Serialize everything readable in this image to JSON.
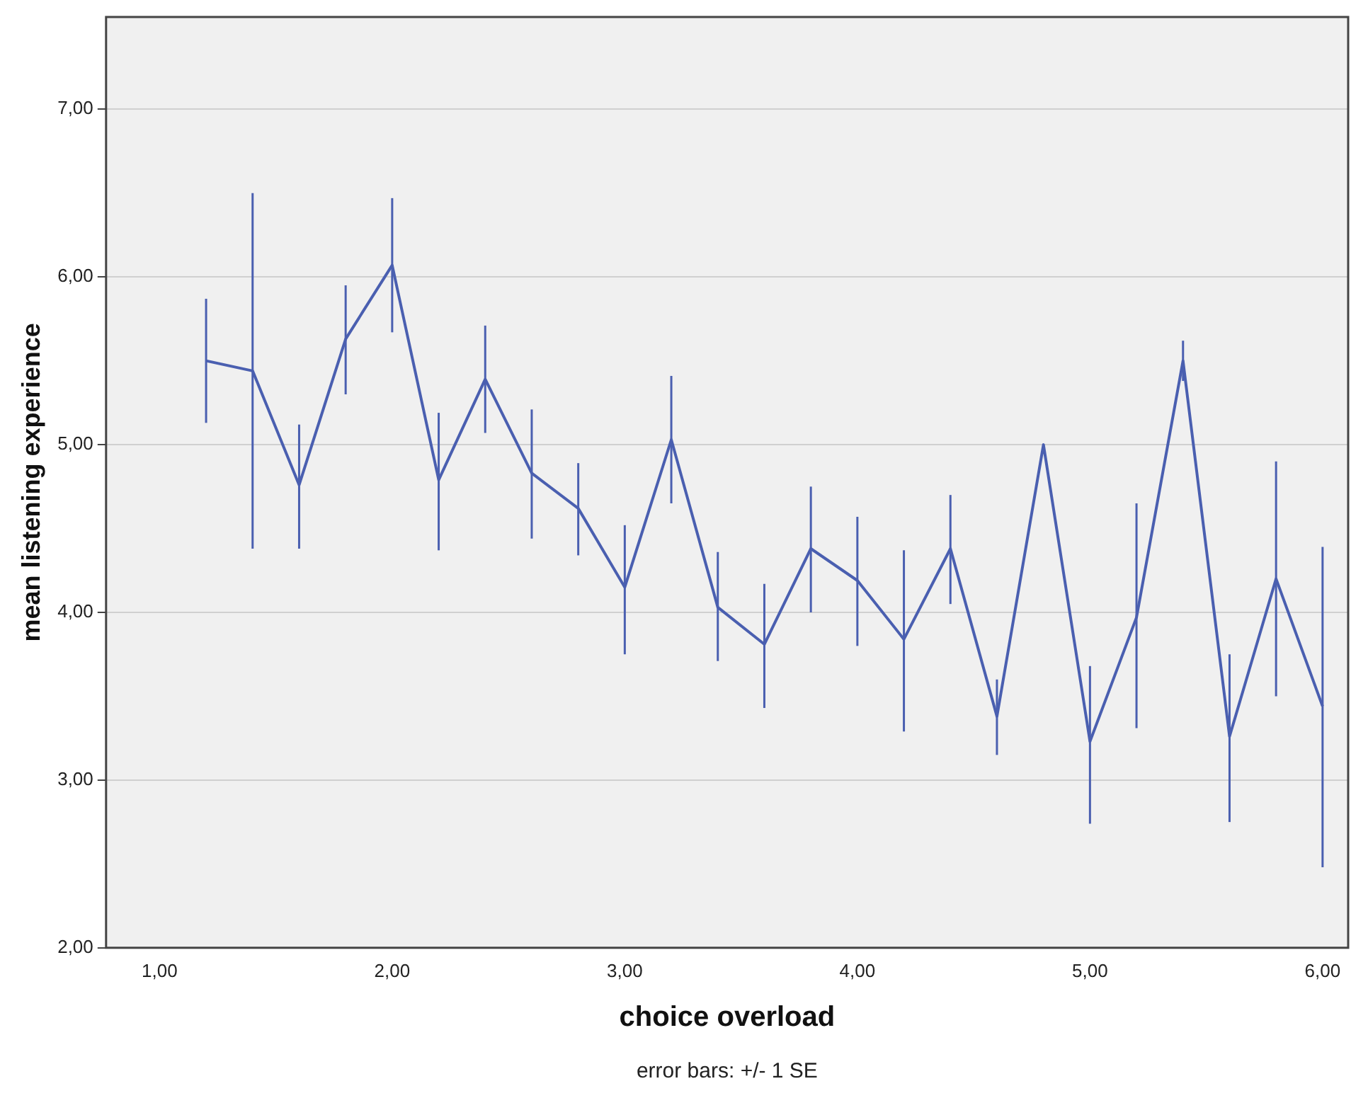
{
  "chart_data": {
    "type": "line",
    "xlabel": "choice overload",
    "ylabel": "mean listening experience",
    "annotations": [
      "error bars: +/- 1 SE"
    ],
    "x": [
      1.2,
      1.4,
      1.6,
      1.8,
      2.0,
      2.2,
      2.4,
      2.6,
      2.8,
      3.0,
      3.2,
      3.4,
      3.6,
      3.8,
      4.0,
      4.2,
      4.4,
      4.6,
      4.8,
      5.0,
      5.2,
      5.4,
      5.6,
      5.8,
      6.0
    ],
    "series": [
      {
        "color": "#4a5fb0",
        "values": [
          5.5,
          5.44,
          4.76,
          5.63,
          6.07,
          4.79,
          5.39,
          4.83,
          4.62,
          4.15,
          5.03,
          4.03,
          3.81,
          4.38,
          4.19,
          3.84,
          4.38,
          3.38,
          5.0,
          3.23,
          3.97,
          5.5,
          3.26,
          4.2,
          3.44
        ],
        "errors": [
          [
            5.13,
            5.87
          ],
          [
            4.38,
            6.5
          ],
          [
            4.38,
            5.12
          ],
          [
            5.3,
            5.95
          ],
          [
            5.67,
            6.47
          ],
          [
            4.37,
            5.19
          ],
          [
            5.07,
            5.71
          ],
          [
            4.44,
            5.21
          ],
          [
            4.34,
            4.89
          ],
          [
            3.75,
            4.52
          ],
          [
            4.65,
            5.41
          ],
          [
            3.71,
            4.36
          ],
          [
            3.43,
            4.17
          ],
          [
            4.0,
            4.75
          ],
          [
            3.8,
            4.57
          ],
          [
            3.29,
            4.37
          ],
          [
            4.05,
            4.7
          ],
          [
            3.15,
            3.6
          ],
          null,
          [
            2.74,
            3.68
          ],
          [
            3.31,
            4.65
          ],
          [
            5.38,
            5.62
          ],
          [
            2.75,
            3.75
          ],
          [
            3.5,
            4.9
          ],
          [
            2.48,
            4.39
          ]
        ]
      }
    ],
    "xlim": [
      0.77,
      6.11
    ],
    "ylim": [
      2,
      7.55
    ],
    "xticks": [
      {
        "value": 1,
        "label": "1,00"
      },
      {
        "value": 2,
        "label": "2,00"
      },
      {
        "value": 3,
        "label": "3,00"
      },
      {
        "value": 4,
        "label": "4,00"
      },
      {
        "value": 5,
        "label": "5,00"
      },
      {
        "value": 6,
        "label": "6,00"
      }
    ],
    "yticks": [
      {
        "value": 2,
        "label": "2,00"
      },
      {
        "value": 3,
        "label": "3,00"
      },
      {
        "value": 4,
        "label": "4,00"
      },
      {
        "value": 5,
        "label": "5,00"
      },
      {
        "value": 6,
        "label": "6,00"
      },
      {
        "value": 7,
        "label": "7,00"
      }
    ],
    "grid": "y",
    "legend": false,
    "marker": "none",
    "line_style": "solid"
  }
}
